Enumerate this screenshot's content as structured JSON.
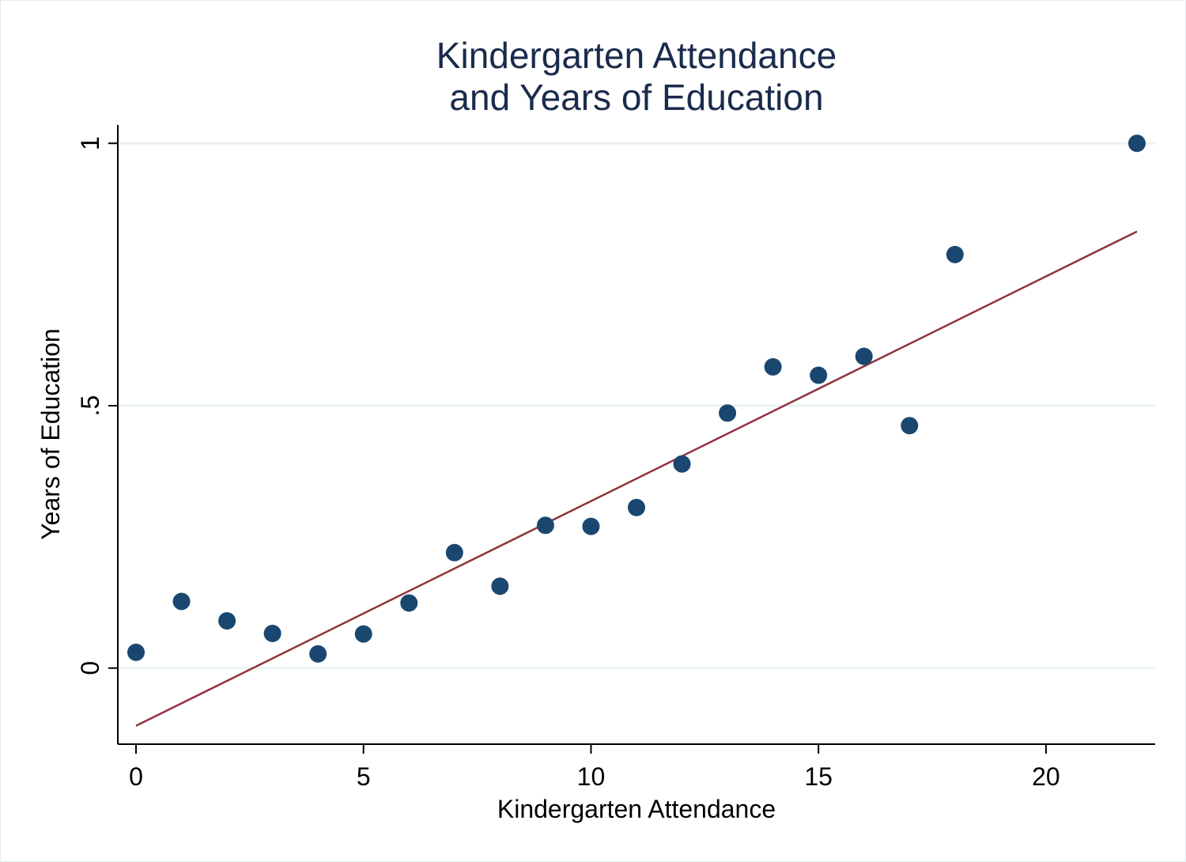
{
  "colors": {
    "marker": "#1a476f",
    "fit_line": "#90353b",
    "grid": "#eaf2f3",
    "axis": "#000000",
    "title": "#1a2b4c"
  },
  "chart_data": {
    "type": "scatter",
    "title": [
      "Kindergarten Attendance",
      "and Years of Education"
    ],
    "xlabel": "Kindergarten Attendance",
    "ylabel": "Years of Education",
    "xlim": [
      -0.4,
      22.4
    ],
    "ylim": [
      -0.145,
      1.035
    ],
    "x_ticks": [
      0,
      5,
      10,
      15,
      20
    ],
    "x_tick_labels": [
      "0",
      "5",
      "10",
      "15",
      "20"
    ],
    "y_ticks": [
      0,
      0.5,
      1
    ],
    "y_tick_labels": [
      "0",
      ".5",
      "1"
    ],
    "grid": "horizontal",
    "series": [
      {
        "kind": "scatter",
        "points": [
          {
            "x": 0,
            "y": 0.03
          },
          {
            "x": 1,
            "y": 0.127
          },
          {
            "x": 2,
            "y": 0.09
          },
          {
            "x": 3,
            "y": 0.066
          },
          {
            "x": 4,
            "y": 0.027
          },
          {
            "x": 5,
            "y": 0.065
          },
          {
            "x": 6,
            "y": 0.124
          },
          {
            "x": 7,
            "y": 0.22
          },
          {
            "x": 8,
            "y": 0.156
          },
          {
            "x": 9,
            "y": 0.272
          },
          {
            "x": 10,
            "y": 0.27
          },
          {
            "x": 11,
            "y": 0.306
          },
          {
            "x": 12,
            "y": 0.389
          },
          {
            "x": 13,
            "y": 0.486
          },
          {
            "x": 14,
            "y": 0.574
          },
          {
            "x": 15,
            "y": 0.558
          },
          {
            "x": 16,
            "y": 0.594
          },
          {
            "x": 17,
            "y": 0.462
          },
          {
            "x": 18,
            "y": 0.788
          },
          {
            "x": 22,
            "y": 1.0
          }
        ]
      },
      {
        "kind": "fit_line",
        "points": [
          {
            "x": 0,
            "y": -0.11
          },
          {
            "x": 22,
            "y": 0.832
          }
        ]
      }
    ]
  }
}
